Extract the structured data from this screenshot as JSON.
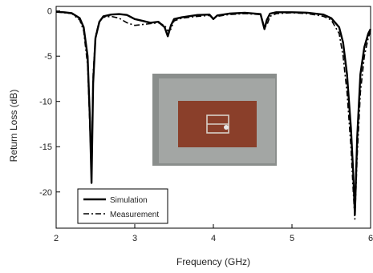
{
  "chart_data": {
    "type": "line",
    "title": "",
    "xlabel": "Frequency (GHz)",
    "ylabel": "Return Loss (dB)",
    "xlim": [
      2,
      6
    ],
    "ylim": [
      -24,
      0.5
    ],
    "xticks": [
      2,
      3,
      4,
      5,
      6
    ],
    "xtick_labels": [
      "2",
      "3",
      "4",
      "5",
      "6"
    ],
    "yticks": [
      0,
      -5,
      -10,
      -15,
      -20
    ],
    "ytick_labels": [
      "0",
      "-5",
      "-10",
      "-15",
      "-20"
    ],
    "grid": false,
    "legend_position": "bottom-left",
    "inset": "photo of the fabricated antenna prototype",
    "series": [
      {
        "name": "Simulation",
        "style": "solid",
        "color": "#000000",
        "x": [
          2.0,
          2.1,
          2.2,
          2.3,
          2.35,
          2.4,
          2.43,
          2.45,
          2.47,
          2.5,
          2.55,
          2.6,
          2.7,
          2.8,
          2.9,
          3.0,
          3.1,
          3.2,
          3.3,
          3.38,
          3.42,
          3.46,
          3.5,
          3.6,
          3.8,
          3.95,
          4.0,
          4.05,
          4.2,
          4.4,
          4.6,
          4.65,
          4.68,
          4.72,
          4.8,
          5.0,
          5.2,
          5.4,
          5.5,
          5.6,
          5.65,
          5.7,
          5.75,
          5.78,
          5.8,
          5.83,
          5.87,
          5.92,
          5.97,
          6.0
        ],
        "values": [
          -0.1,
          -0.15,
          -0.25,
          -0.8,
          -1.8,
          -5.0,
          -12.0,
          -19.0,
          -8.0,
          -3.0,
          -1.2,
          -0.6,
          -0.4,
          -0.35,
          -0.45,
          -0.9,
          -1.1,
          -1.3,
          -1.2,
          -1.8,
          -2.8,
          -1.6,
          -0.9,
          -0.7,
          -0.45,
          -0.4,
          -0.9,
          -0.5,
          -0.3,
          -0.2,
          -0.35,
          -2.0,
          -1.0,
          -0.3,
          -0.15,
          -0.15,
          -0.2,
          -0.4,
          -0.8,
          -1.8,
          -3.5,
          -7.0,
          -13.0,
          -18.0,
          -22.5,
          -14.0,
          -7.0,
          -4.0,
          -2.5,
          -2.0
        ]
      },
      {
        "name": "Measurement",
        "style": "dash-dot",
        "color": "#000000",
        "x": [
          2.0,
          2.1,
          2.2,
          2.3,
          2.35,
          2.4,
          2.43,
          2.45,
          2.47,
          2.5,
          2.55,
          2.6,
          2.7,
          2.8,
          2.9,
          3.0,
          3.1,
          3.2,
          3.3,
          3.38,
          3.42,
          3.46,
          3.5,
          3.6,
          3.8,
          3.95,
          4.0,
          4.05,
          4.2,
          4.4,
          4.6,
          4.65,
          4.68,
          4.72,
          4.8,
          5.0,
          5.2,
          5.4,
          5.5,
          5.6,
          5.65,
          5.7,
          5.75,
          5.78,
          5.8,
          5.83,
          5.87,
          5.92,
          5.97,
          6.0
        ],
        "values": [
          -0.1,
          -0.2,
          -0.3,
          -1.0,
          -2.2,
          -6.0,
          -13.0,
          -18.0,
          -7.0,
          -2.8,
          -1.1,
          -0.7,
          -0.6,
          -0.8,
          -1.3,
          -1.6,
          -1.5,
          -1.4,
          -1.3,
          -1.6,
          -2.2,
          -2.0,
          -1.1,
          -0.8,
          -0.6,
          -0.5,
          -0.8,
          -0.6,
          -0.4,
          -0.3,
          -0.4,
          -1.8,
          -1.6,
          -0.6,
          -0.3,
          -0.2,
          -0.3,
          -0.6,
          -1.0,
          -2.5,
          -5.0,
          -9.0,
          -15.0,
          -20.0,
          -23.0,
          -16.0,
          -9.0,
          -5.0,
          -3.0,
          -2.2
        ]
      }
    ]
  }
}
